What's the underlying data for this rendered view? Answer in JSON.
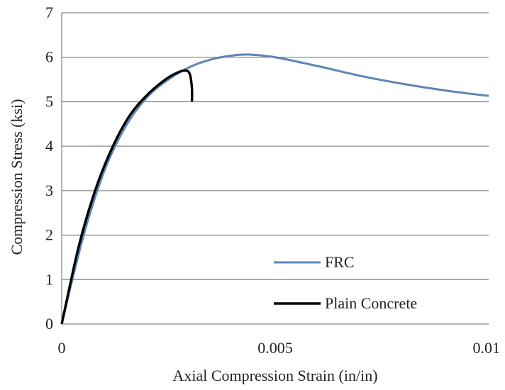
{
  "chart_data": {
    "type": "line",
    "xlabel": "Axial Compression Strain (in/in)",
    "ylabel": "Compression Stress (ksi)",
    "xlim": [
      0,
      0.01
    ],
    "ylim": [
      0,
      7
    ],
    "xticks": [
      0,
      0.005,
      0.01
    ],
    "xtick_labels": [
      "0",
      "0.005",
      "0.01"
    ],
    "yticks": [
      0,
      1,
      2,
      3,
      4,
      5,
      6,
      7
    ],
    "ytick_labels": [
      "0",
      "1",
      "2",
      "3",
      "4",
      "5",
      "6",
      "7"
    ],
    "grid": "horizontal",
    "legend_position": "bottom-right",
    "series": [
      {
        "name": "FRC",
        "color": "#5b86b5",
        "points": [
          [
            0,
            0
          ],
          [
            0.0005,
            1.95
          ],
          [
            0.001,
            3.45
          ],
          [
            0.0015,
            4.45
          ],
          [
            0.002,
            5.1
          ],
          [
            0.0025,
            5.5
          ],
          [
            0.003,
            5.78
          ],
          [
            0.0035,
            5.95
          ],
          [
            0.004,
            6.04
          ],
          [
            0.0044,
            6.06
          ],
          [
            0.005,
            6.0
          ],
          [
            0.006,
            5.8
          ],
          [
            0.007,
            5.58
          ],
          [
            0.008,
            5.4
          ],
          [
            0.009,
            5.25
          ],
          [
            0.01,
            5.13
          ]
        ]
      },
      {
        "name": "Plain Concrete",
        "color": "#000000",
        "points": [
          [
            0,
            0
          ],
          [
            0.0004,
            1.75
          ],
          [
            0.0008,
            3.05
          ],
          [
            0.0012,
            4.0
          ],
          [
            0.0016,
            4.7
          ],
          [
            0.002,
            5.15
          ],
          [
            0.0024,
            5.48
          ],
          [
            0.0027,
            5.65
          ],
          [
            0.0029,
            5.7
          ],
          [
            0.003,
            5.62
          ],
          [
            0.00305,
            5.3
          ],
          [
            0.00305,
            5.0
          ]
        ]
      }
    ]
  }
}
